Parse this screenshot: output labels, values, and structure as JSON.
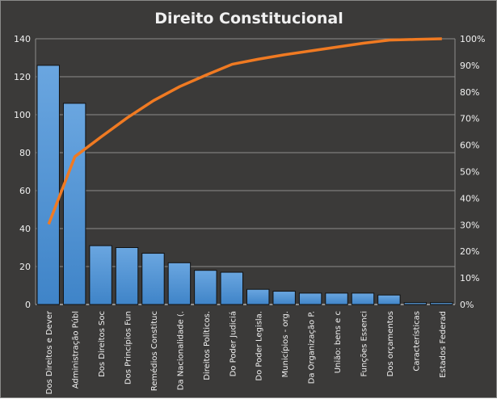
{
  "chart_data": {
    "type": "bar",
    "title": "Direito  Constitucional",
    "categories": [
      "Dos Direitos e Dever",
      "Administração Públ",
      "Dos Direitos Soc",
      "Dos Princípios Fun",
      "Remédios Constituc",
      "Da Nacionalidade (.",
      "Direitos Políticos.",
      "Do Poder Judiciá",
      "Do Poder Legisla.",
      "Municípios - org.",
      "Da Organização P.",
      "União: bens e c",
      "Funções Essenci",
      "Dos orçamentos",
      "Características",
      "Estados Federad"
    ],
    "series": [
      {
        "type": "bar",
        "values": [
          126,
          106,
          31,
          30,
          27,
          22,
          18,
          17,
          8,
          7,
          6,
          6,
          6,
          5,
          1,
          1
        ],
        "color": "#4a8fd4"
      },
      {
        "type": "line",
        "cumulative_percent": true,
        "color": "#f07a22"
      }
    ],
    "y_left": {
      "ylim": [
        0,
        140
      ],
      "ticks": [
        "0",
        "20",
        "40",
        "60",
        "80",
        "100",
        "120",
        "140"
      ]
    },
    "y_right": {
      "ylim": [
        0,
        1
      ],
      "ticks": [
        "0%",
        "10%",
        "20%",
        "30%",
        "40%",
        "50%",
        "60%",
        "70%",
        "80%",
        "90%",
        "100%"
      ]
    },
    "grid": true,
    "legend": "none"
  }
}
